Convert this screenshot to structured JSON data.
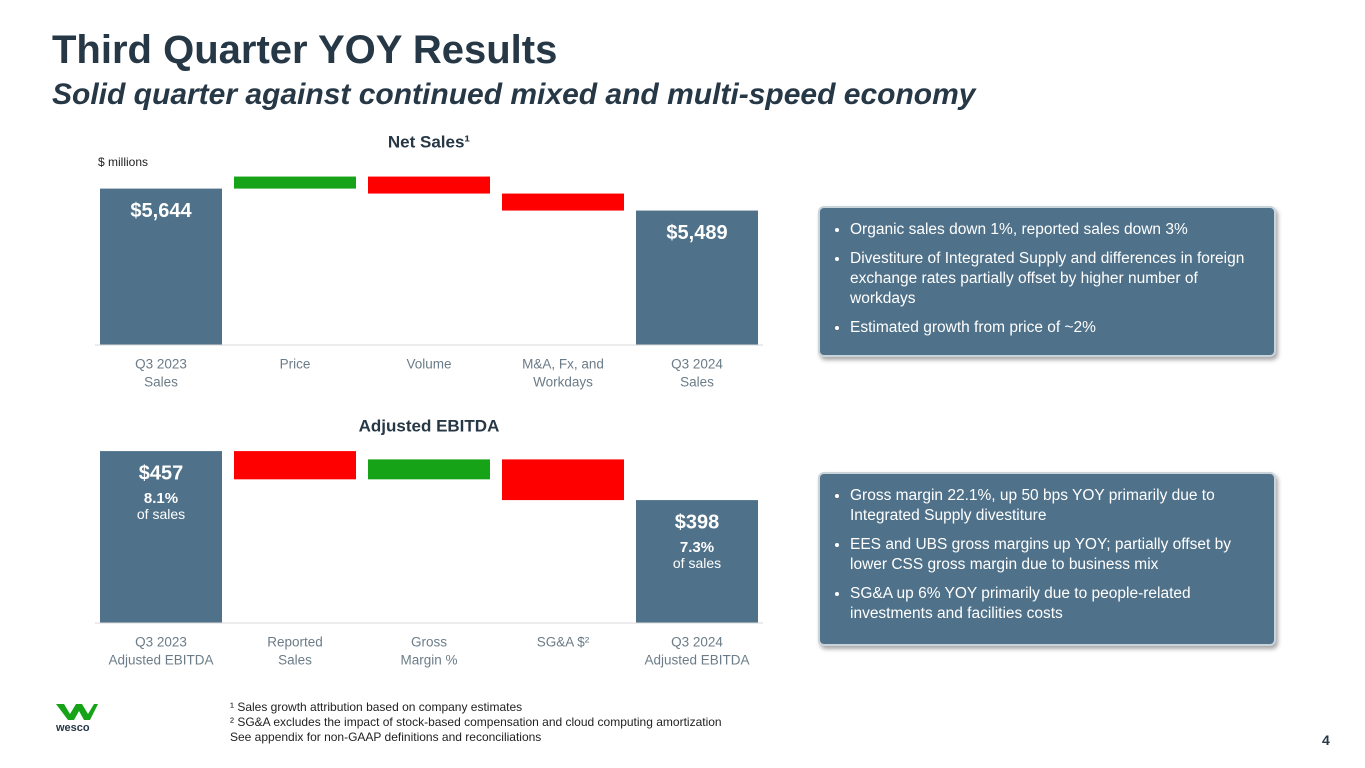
{
  "header": {
    "title": "Third Quarter YOY Results",
    "subtitle": "Solid quarter against continued mixed and multi-speed economy"
  },
  "chart_data": [
    {
      "type": "waterfall",
      "title": "Net Sales¹",
      "y_axis_label": "$ millions",
      "categories": [
        [
          "Q3 2023",
          "Sales"
        ],
        [
          "Price"
        ],
        [
          "Volume"
        ],
        [
          "M&A, Fx, and",
          "Workdays"
        ],
        [
          "Q3 2024",
          "Sales"
        ]
      ],
      "values": [
        5644,
        85,
        -120,
        -120,
        5489
      ],
      "value_labels": [
        "$5,644",
        null,
        null,
        null,
        "$5,489"
      ],
      "ylim": [
        4540,
        5740
      ],
      "total_color": "#4f7189",
      "increase_color": "#17a317",
      "decrease_color": "#ff0000"
    },
    {
      "type": "waterfall",
      "title": "Adjusted EBITDA",
      "categories": [
        [
          "Q3 2023",
          "Adjusted EBITDA"
        ],
        [
          "Reported",
          "Sales"
        ],
        [
          "Gross",
          "Margin %"
        ],
        [
          "SG&A $²"
        ],
        [
          "Q3 2024",
          "Adjusted EBITDA"
        ]
      ],
      "values": [
        457,
        -34,
        24,
        -49,
        398
      ],
      "value_labels": [
        "$457",
        null,
        null,
        null,
        "$398"
      ],
      "margin_labels": [
        "8.1%",
        null,
        null,
        null,
        "7.3%"
      ],
      "margin_note": "of sales",
      "ylim": [
        250,
        460
      ],
      "total_color": "#4f7189",
      "increase_color": "#17a317",
      "decrease_color": "#ff0000"
    }
  ],
  "callouts": [
    {
      "bullets": [
        "Organic sales down 1%, reported sales down 3%",
        "Divestiture of Integrated Supply and differences in foreign exchange rates partially offset by higher number of workdays",
        "Estimated growth from price of ~2%"
      ]
    },
    {
      "bullets": [
        "Gross margin 22.1%, up 50 bps YOY primarily due to Integrated Supply divestiture",
        "EES and UBS gross margins up YOY; partially offset by lower CSS gross margin due to business mix",
        "SG&A up 6% YOY primarily due to people-related investments and facilities costs"
      ]
    }
  ],
  "footnotes": [
    "¹ Sales growth attribution based on company estimates",
    "² SG&A excludes the impact of stock-based compensation and cloud computing amortization",
    "See appendix for non-GAAP definitions and reconciliations"
  ],
  "logo": "wesco",
  "page_number": "4"
}
